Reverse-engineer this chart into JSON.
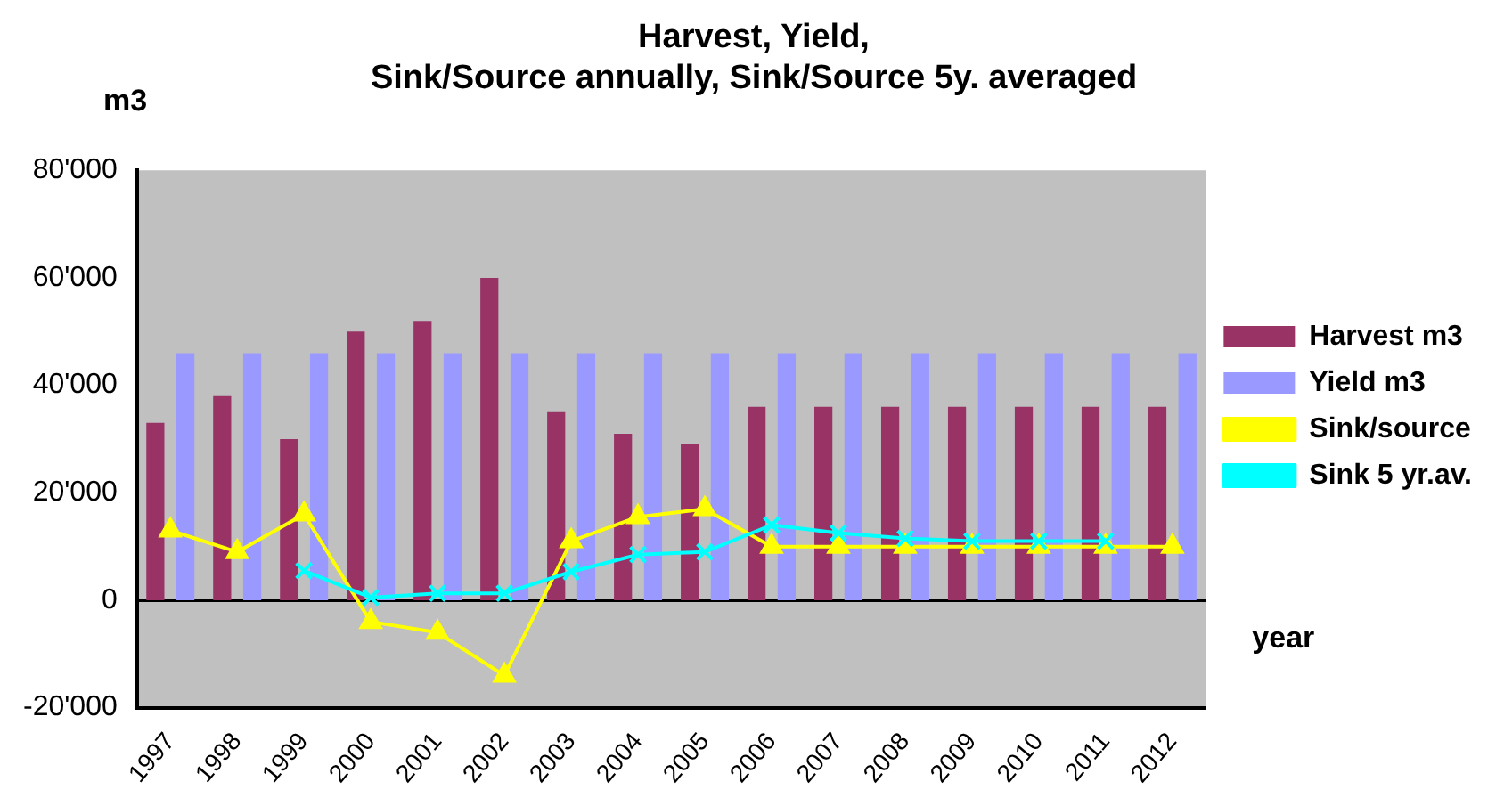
{
  "chart_data": {
    "type": "bar",
    "title": "Harvest, Yield,\nSink/Source annually, Sink/Source 5y. averaged",
    "xlabel": "year",
    "ylabel": "m3",
    "categories": [
      "1997",
      "1998",
      "1999",
      "2000",
      "2001",
      "2002",
      "2003",
      "2004",
      "2005",
      "2006",
      "2007",
      "2008",
      "2009",
      "2010",
      "2011",
      "2012"
    ],
    "series": [
      {
        "name": "Harvest m3",
        "color": "#993366",
        "values": [
          33000,
          38000,
          30000,
          50000,
          52000,
          60000,
          35000,
          31000,
          29000,
          36000,
          36000,
          36000,
          36000,
          36000,
          36000,
          36000
        ]
      },
      {
        "name": "Yield m3",
        "color": "#9999ff",
        "values": [
          46000,
          46000,
          46000,
          46000,
          46000,
          46000,
          46000,
          46000,
          46000,
          46000,
          46000,
          46000,
          46000,
          46000,
          46000,
          46000
        ]
      },
      {
        "name": "Sink/source",
        "type": "line",
        "color": "#ffff00",
        "marker": "triangle",
        "values": [
          13000,
          9000,
          16000,
          -4000,
          -6000,
          -14000,
          11000,
          15500,
          17000,
          10000,
          10000,
          10000,
          10000,
          10000,
          10000,
          10000
        ]
      },
      {
        "name": "Sink 5 yr.av.",
        "type": "line",
        "color": "#00ffff",
        "marker": "cross",
        "values": [
          null,
          null,
          5500,
          500,
          1300,
          1300,
          5300,
          8500,
          9000,
          14000,
          12500,
          11500,
          11000,
          11000,
          11000,
          null
        ]
      }
    ],
    "ylim": [
      -20000,
      80000
    ],
    "yticks": [
      {
        "value": -20000,
        "label": "-20'000"
      },
      {
        "value": 0,
        "label": "0"
      },
      {
        "value": 20000,
        "label": "20'000"
      },
      {
        "value": 40000,
        "label": "40'000"
      },
      {
        "value": 60000,
        "label": "60'000"
      },
      {
        "value": 80000,
        "label": "80'000"
      }
    ],
    "ref_lines": [
      {
        "axis": "y",
        "value": 0,
        "color": "#000000"
      }
    ],
    "grid": false,
    "legend": "right"
  }
}
